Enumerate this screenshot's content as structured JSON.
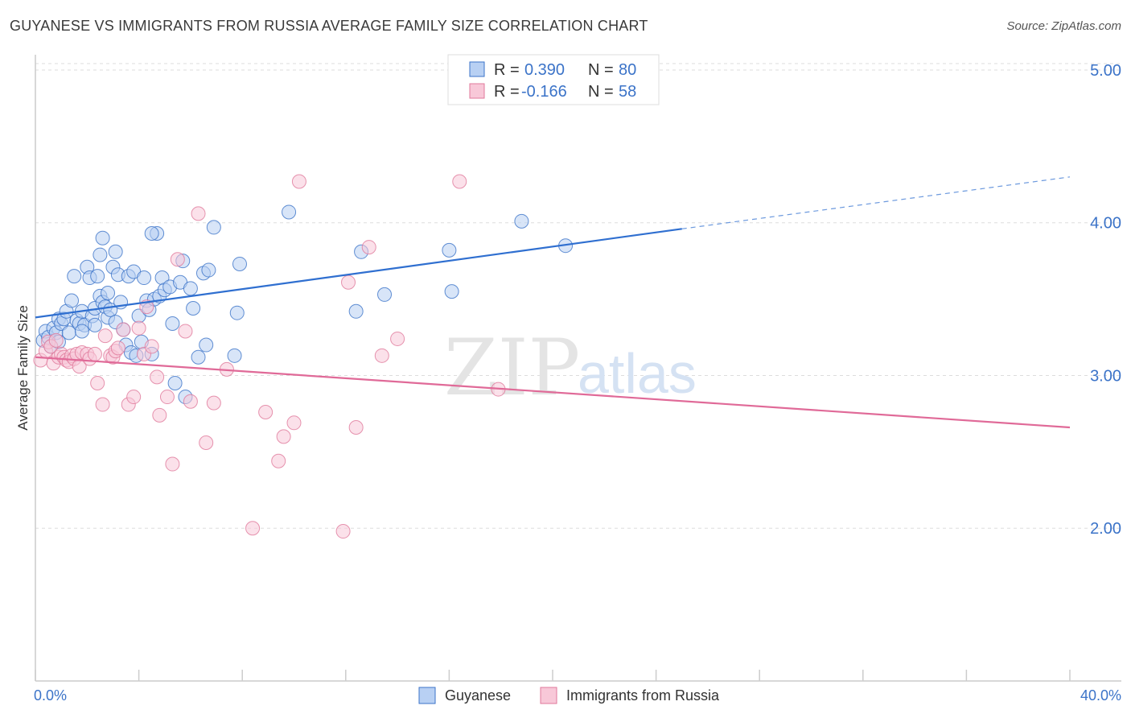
{
  "title": "GUYANESE VS IMMIGRANTS FROM RUSSIA AVERAGE FAMILY SIZE CORRELATION CHART",
  "source": "Source: ZipAtlas.com",
  "watermark": {
    "zip": "ZIP",
    "atlas": "atlas"
  },
  "colors": {
    "blue": "#3b73c8",
    "blue_fill": "#b8d0f3",
    "blue_line": "#2f6fd0",
    "pink": "#e0799b",
    "pink_fill": "#f8c8d8",
    "pink_line": "#e06a98",
    "grid": "#dddddd"
  },
  "legend": {
    "rows": [
      {
        "r_label": "R =",
        "r_value": "0.390",
        "n_label": "N =",
        "n_value": "80"
      },
      {
        "r_label": "R =",
        "r_value": "-0.166",
        "n_label": "N =",
        "n_value": "58"
      }
    ]
  },
  "chart_data": {
    "type": "scatter",
    "title": "GUYANESE VS IMMIGRANTS FROM RUSSIA AVERAGE FAMILY SIZE CORRELATION CHART",
    "xlabel": "",
    "ylabel": "Average Family Size",
    "xlim": [
      0,
      40
    ],
    "ylim": [
      1.0,
      5.1
    ],
    "x_tick_labels": [
      "0.0%",
      "40.0%"
    ],
    "y_ticks": [
      2.0,
      3.0,
      4.0,
      5.0
    ],
    "y_tick_labels": [
      "2.00",
      "3.00",
      "4.00",
      "5.00"
    ],
    "grid": true,
    "legend_position": "top-center",
    "series": [
      {
        "name": "Guyanese",
        "color": "#3b73c8",
        "r": 0.39,
        "n": 80,
        "trend": {
          "x0": 0,
          "y0": 3.38,
          "x1": 25,
          "y1": 3.96,
          "dashed_to_x": 40,
          "dashed_to_y": 4.3
        },
        "points": [
          [
            0.3,
            3.23
          ],
          [
            0.4,
            3.29
          ],
          [
            0.5,
            3.25
          ],
          [
            0.6,
            3.19
          ],
          [
            0.7,
            3.31
          ],
          [
            0.8,
            3.28
          ],
          [
            0.9,
            3.37
          ],
          [
            1.0,
            3.34
          ],
          [
            1.1,
            3.37
          ],
          [
            1.2,
            3.42
          ],
          [
            1.3,
            3.28
          ],
          [
            1.4,
            3.49
          ],
          [
            1.5,
            3.65
          ],
          [
            1.6,
            3.36
          ],
          [
            1.7,
            3.34
          ],
          [
            1.8,
            3.42
          ],
          [
            1.9,
            3.33
          ],
          [
            2.0,
            3.71
          ],
          [
            2.1,
            3.64
          ],
          [
            2.2,
            3.39
          ],
          [
            2.3,
            3.44
          ],
          [
            2.4,
            3.65
          ],
          [
            2.5,
            3.52
          ],
          [
            2.6,
            3.48
          ],
          [
            2.7,
            3.45
          ],
          [
            2.8,
            3.38
          ],
          [
            2.9,
            3.43
          ],
          [
            2.5,
            3.79
          ],
          [
            2.6,
            3.9
          ],
          [
            2.8,
            3.54
          ],
          [
            3.0,
            3.71
          ],
          [
            3.1,
            3.81
          ],
          [
            3.2,
            3.66
          ],
          [
            3.3,
            3.48
          ],
          [
            3.4,
            3.3
          ],
          [
            3.5,
            3.2
          ],
          [
            3.6,
            3.65
          ],
          [
            3.7,
            3.15
          ],
          [
            3.8,
            3.68
          ],
          [
            3.9,
            3.13
          ],
          [
            4.0,
            3.39
          ],
          [
            4.1,
            3.22
          ],
          [
            4.2,
            3.64
          ],
          [
            4.3,
            3.49
          ],
          [
            4.4,
            3.43
          ],
          [
            4.5,
            3.14
          ],
          [
            4.6,
            3.5
          ],
          [
            4.7,
            3.93
          ],
          [
            4.8,
            3.52
          ],
          [
            4.9,
            3.64
          ],
          [
            5.0,
            3.56
          ],
          [
            5.2,
            3.58
          ],
          [
            5.3,
            3.34
          ],
          [
            5.4,
            2.95
          ],
          [
            5.6,
            3.61
          ],
          [
            5.7,
            3.75
          ],
          [
            5.8,
            2.86
          ],
          [
            6.0,
            3.57
          ],
          [
            6.1,
            3.44
          ],
          [
            6.3,
            3.12
          ],
          [
            6.5,
            3.67
          ],
          [
            6.6,
            3.2
          ],
          [
            6.7,
            3.69
          ],
          [
            6.9,
            3.97
          ],
          [
            7.7,
            3.13
          ],
          [
            7.8,
            3.41
          ],
          [
            7.9,
            3.73
          ],
          [
            9.8,
            4.07
          ],
          [
            12.4,
            3.42
          ],
          [
            12.6,
            3.81
          ],
          [
            13.5,
            3.53
          ],
          [
            16.0,
            3.82
          ],
          [
            16.1,
            3.55
          ],
          [
            18.8,
            4.01
          ],
          [
            20.5,
            3.85
          ],
          [
            4.5,
            3.93
          ],
          [
            3.1,
            3.35
          ],
          [
            2.3,
            3.33
          ],
          [
            1.8,
            3.29
          ],
          [
            0.9,
            3.22
          ]
        ]
      },
      {
        "name": "Immigrants from Russia",
        "color": "#e0799b",
        "r": -0.166,
        "n": 58,
        "trend": {
          "x0": 0,
          "y0": 3.12,
          "x1": 40,
          "y1": 2.66
        },
        "points": [
          [
            0.2,
            3.1
          ],
          [
            0.4,
            3.16
          ],
          [
            0.5,
            3.22
          ],
          [
            0.6,
            3.19
          ],
          [
            0.7,
            3.08
          ],
          [
            0.8,
            3.23
          ],
          [
            0.9,
            3.12
          ],
          [
            1.0,
            3.14
          ],
          [
            1.1,
            3.12
          ],
          [
            1.2,
            3.1
          ],
          [
            1.3,
            3.09
          ],
          [
            1.4,
            3.13
          ],
          [
            1.5,
            3.11
          ],
          [
            1.6,
            3.14
          ],
          [
            1.7,
            3.06
          ],
          [
            1.8,
            3.15
          ],
          [
            2.0,
            3.14
          ],
          [
            2.1,
            3.11
          ],
          [
            2.3,
            3.14
          ],
          [
            2.4,
            2.95
          ],
          [
            2.6,
            2.81
          ],
          [
            2.7,
            3.26
          ],
          [
            2.9,
            3.13
          ],
          [
            3.0,
            3.12
          ],
          [
            3.1,
            3.16
          ],
          [
            3.2,
            3.18
          ],
          [
            3.4,
            3.3
          ],
          [
            3.6,
            2.81
          ],
          [
            3.8,
            2.86
          ],
          [
            4.0,
            3.31
          ],
          [
            4.2,
            3.14
          ],
          [
            4.3,
            3.45
          ],
          [
            4.5,
            3.19
          ],
          [
            4.7,
            2.99
          ],
          [
            4.8,
            2.74
          ],
          [
            5.1,
            2.86
          ],
          [
            5.3,
            2.42
          ],
          [
            5.5,
            3.76
          ],
          [
            5.8,
            3.29
          ],
          [
            6.0,
            2.83
          ],
          [
            6.3,
            4.06
          ],
          [
            6.6,
            2.56
          ],
          [
            6.9,
            2.82
          ],
          [
            7.4,
            3.04
          ],
          [
            8.4,
            2.0
          ],
          [
            8.9,
            2.76
          ],
          [
            9.4,
            2.44
          ],
          [
            9.6,
            2.6
          ],
          [
            10.0,
            2.69
          ],
          [
            10.2,
            4.27
          ],
          [
            11.9,
            1.98
          ],
          [
            12.1,
            3.61
          ],
          [
            12.4,
            2.66
          ],
          [
            12.9,
            3.84
          ],
          [
            13.4,
            3.13
          ],
          [
            14.0,
            3.24
          ],
          [
            16.4,
            4.27
          ],
          [
            17.9,
            2.91
          ]
        ]
      }
    ]
  },
  "bottom_legend": {
    "items": [
      "Guyanese",
      "Immigrants from Russia"
    ]
  }
}
